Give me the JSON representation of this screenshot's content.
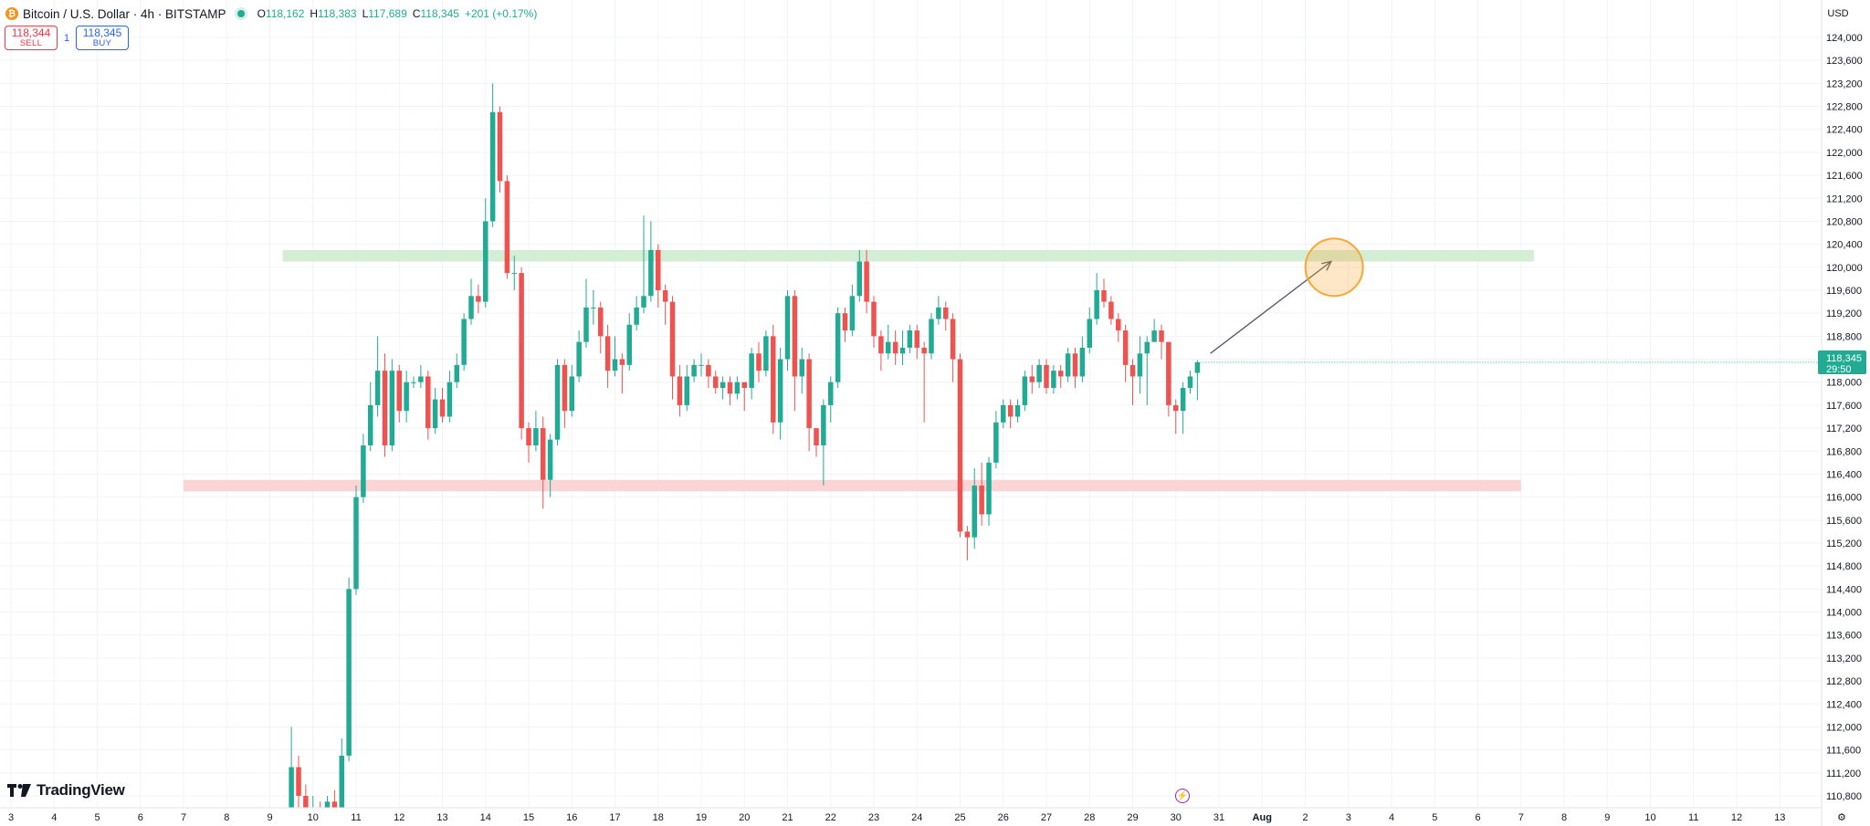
{
  "header": {
    "symbol_icon": "bitcoin-icon",
    "symbol_letter": "₿",
    "title": "Bitcoin / U.S. Dollar · 4h · BITSTAMP",
    "status_color": "#22ab94",
    "ohlc": {
      "open_label": "O",
      "open": "118,162",
      "high_label": "H",
      "high": "118,383",
      "low_label": "L",
      "low": "117,689",
      "close_label": "C",
      "close": "118,345",
      "change": "+201 (+0.17%)"
    }
  },
  "trade": {
    "sell_price": "118,344",
    "sell_label": "SELL",
    "quantity": "1",
    "buy_price": "118,345",
    "buy_label": "BUY"
  },
  "currency": "USD",
  "branding": {
    "logo_text": "TradingView"
  },
  "price_tag": {
    "price": "118,345",
    "countdown": "29:50"
  },
  "colors": {
    "up": "#22ab94",
    "down": "#ef5350",
    "resistance_zone": "#d4eed5",
    "support_zone": "#fbd4d6",
    "target_circle": "#f7a832",
    "arrow": "#50535e",
    "price_tag": "#22ab94"
  },
  "chart_data": {
    "type": "candlestick",
    "timeframe": "4h",
    "y_ticks": [
      "124,000",
      "123,600",
      "123,200",
      "122,800",
      "122,400",
      "122,000",
      "121,600",
      "121,200",
      "120,800",
      "120,400",
      "120,000",
      "119,600",
      "119,200",
      "118,800",
      "118,400",
      "118,000",
      "117,600",
      "117,200",
      "116,800",
      "116,400",
      "116,000",
      "115,600",
      "115,200",
      "114,800",
      "114,400",
      "114,000",
      "113,600",
      "113,200",
      "112,800",
      "112,400",
      "112,000",
      "111,600",
      "111,200",
      "110,800"
    ],
    "x_ticks": [
      "3",
      "4",
      "5",
      "6",
      "7",
      "8",
      "9",
      "10",
      "11",
      "12",
      "13",
      "14",
      "15",
      "16",
      "17",
      "18",
      "19",
      "20",
      "21",
      "22",
      "23",
      "24",
      "25",
      "26",
      "27",
      "28",
      "29",
      "30",
      "31",
      "Aug",
      "2",
      "3",
      "4",
      "5",
      "6",
      "7",
      "8",
      "9",
      "10",
      "11",
      "12",
      "13"
    ],
    "x_start_day": 3,
    "ylim": [
      110600,
      124300
    ],
    "grid": true,
    "candles": [
      [
        9.5,
        110500,
        111300,
        110000,
        112000
      ],
      [
        9.667,
        111300,
        110800,
        110600,
        111500
      ],
      [
        9.833,
        110800,
        110400,
        110200,
        111000
      ],
      [
        10,
        110400,
        110600,
        110300,
        110800
      ],
      [
        10.167,
        110600,
        110400,
        110200,
        110700
      ],
      [
        10.333,
        110400,
        110700,
        110300,
        110800
      ],
      [
        10.5,
        110700,
        110500,
        110300,
        110900
      ],
      [
        10.667,
        110500,
        111500,
        110400,
        111800
      ],
      [
        10.833,
        111500,
        114400,
        111400,
        114600
      ],
      [
        11,
        114400,
        116000,
        114300,
        116200
      ],
      [
        11.167,
        116000,
        116900,
        115900,
        117100
      ],
      [
        11.333,
        116900,
        117600,
        116800,
        118000
      ],
      [
        11.5,
        117600,
        118200,
        117400,
        118800
      ],
      [
        11.667,
        118200,
        116900,
        116700,
        118500
      ],
      [
        11.833,
        116900,
        118200,
        116800,
        118400
      ],
      [
        12,
        118200,
        117500,
        117300,
        118300
      ],
      [
        12.167,
        117500,
        118000,
        117300,
        118200
      ],
      [
        12.333,
        118000,
        118000,
        117900,
        118100
      ],
      [
        12.5,
        118000,
        118100,
        117900,
        118300
      ],
      [
        12.667,
        118100,
        117200,
        117000,
        118200
      ],
      [
        12.833,
        117200,
        117700,
        117100,
        117900
      ],
      [
        13,
        117700,
        117400,
        117300,
        117900
      ],
      [
        13.167,
        117400,
        118000,
        117300,
        118200
      ],
      [
        13.333,
        118000,
        118300,
        117900,
        118500
      ],
      [
        13.5,
        118300,
        119100,
        118200,
        119200
      ],
      [
        13.667,
        119100,
        119500,
        119000,
        119800
      ],
      [
        13.833,
        119500,
        119400,
        119200,
        119700
      ],
      [
        14,
        119400,
        120800,
        119300,
        121200
      ],
      [
        14.167,
        120800,
        122700,
        120700,
        123200
      ],
      [
        14.333,
        122700,
        121500,
        121300,
        122800
      ],
      [
        14.5,
        121500,
        119900,
        119800,
        121600
      ],
      [
        14.667,
        119900,
        119900,
        119600,
        120200
      ],
      [
        14.833,
        119900,
        117200,
        117000,
        120000
      ],
      [
        15,
        117200,
        116900,
        116600,
        117300
      ],
      [
        15.167,
        116900,
        117200,
        116800,
        117500
      ],
      [
        15.333,
        117200,
        116300,
        115800,
        117400
      ],
      [
        15.5,
        116300,
        117000,
        116000,
        117100
      ],
      [
        15.667,
        117000,
        118300,
        116900,
        118400
      ],
      [
        15.833,
        118300,
        117500,
        117200,
        118400
      ],
      [
        16,
        117500,
        118100,
        117400,
        118300
      ],
      [
        16.167,
        118100,
        118700,
        118000,
        118900
      ],
      [
        16.333,
        118700,
        119300,
        118600,
        119800
      ],
      [
        16.5,
        119300,
        119300,
        119000,
        119600
      ],
      [
        16.667,
        119300,
        118800,
        118500,
        119400
      ],
      [
        16.833,
        118800,
        118200,
        117900,
        119000
      ],
      [
        17,
        118200,
        118400,
        118100,
        118800
      ],
      [
        17.167,
        118400,
        118300,
        117800,
        118500
      ],
      [
        17.333,
        118300,
        119000,
        118200,
        119200
      ],
      [
        17.5,
        119000,
        119300,
        118900,
        119500
      ],
      [
        17.667,
        119300,
        119500,
        119200,
        120900
      ],
      [
        17.833,
        119500,
        120300,
        119400,
        120800
      ],
      [
        18,
        120300,
        119600,
        119300,
        120400
      ],
      [
        18.167,
        119600,
        119400,
        119000,
        119700
      ],
      [
        18.333,
        119400,
        118100,
        117700,
        119500
      ],
      [
        18.5,
        118100,
        117600,
        117400,
        118300
      ],
      [
        18.667,
        117600,
        118100,
        117500,
        118300
      ],
      [
        18.833,
        118100,
        118300,
        118000,
        118400
      ],
      [
        19,
        118300,
        118300,
        118100,
        118500
      ],
      [
        19.167,
        118300,
        118100,
        117900,
        118400
      ],
      [
        19.333,
        118100,
        117900,
        117800,
        118200
      ],
      [
        19.5,
        117900,
        118000,
        117700,
        118100
      ],
      [
        19.667,
        118000,
        117800,
        117600,
        118100
      ],
      [
        19.833,
        117800,
        118000,
        117700,
        118100
      ],
      [
        20,
        118000,
        117900,
        117500,
        118000
      ],
      [
        20.167,
        117900,
        118500,
        117700,
        118600
      ],
      [
        20.333,
        118500,
        118200,
        118000,
        118700
      ],
      [
        20.5,
        118200,
        118800,
        118100,
        118900
      ],
      [
        20.667,
        118800,
        117300,
        117100,
        119000
      ],
      [
        20.833,
        117300,
        118400,
        117000,
        118600
      ],
      [
        21,
        118400,
        119500,
        118200,
        119600
      ],
      [
        21.167,
        119500,
        118100,
        117500,
        119600
      ],
      [
        21.333,
        118100,
        118400,
        117800,
        118600
      ],
      [
        21.5,
        118400,
        117200,
        116800,
        118500
      ],
      [
        21.667,
        117200,
        116900,
        116700,
        117200
      ],
      [
        21.833,
        116900,
        117600,
        116200,
        117700
      ],
      [
        22,
        117600,
        118000,
        117300,
        118100
      ],
      [
        22.167,
        118000,
        119200,
        117900,
        119300
      ],
      [
        22.333,
        119200,
        118900,
        118700,
        119300
      ],
      [
        22.5,
        118900,
        119500,
        118800,
        119700
      ],
      [
        22.667,
        119500,
        120100,
        119400,
        120300
      ],
      [
        22.833,
        120100,
        119400,
        119200,
        120300
      ],
      [
        23,
        119400,
        118800,
        118600,
        119500
      ],
      [
        23.167,
        118800,
        118500,
        118200,
        118900
      ],
      [
        23.333,
        118500,
        118700,
        118400,
        119000
      ],
      [
        23.5,
        118700,
        118500,
        118300,
        118900
      ],
      [
        23.667,
        118500,
        118600,
        118300,
        118900
      ],
      [
        23.833,
        118600,
        118900,
        118500,
        119000
      ],
      [
        24,
        118900,
        118600,
        118400,
        119000
      ],
      [
        24.167,
        118600,
        118500,
        117300,
        118700
      ],
      [
        24.333,
        118500,
        119100,
        118400,
        119200
      ],
      [
        24.5,
        119100,
        119300,
        119000,
        119500
      ],
      [
        24.667,
        119300,
        119100,
        118900,
        119400
      ],
      [
        24.833,
        119100,
        118400,
        118000,
        119200
      ],
      [
        25,
        118400,
        115400,
        115300,
        118500
      ],
      [
        25.167,
        115400,
        115300,
        114900,
        115500
      ],
      [
        25.333,
        115300,
        116200,
        115100,
        116500
      ],
      [
        25.5,
        116200,
        115700,
        115500,
        116600
      ],
      [
        25.667,
        115700,
        116600,
        115500,
        116700
      ],
      [
        25.833,
        116600,
        117300,
        116500,
        117500
      ],
      [
        26,
        117300,
        117600,
        117200,
        117700
      ],
      [
        26.167,
        117600,
        117400,
        117200,
        117700
      ],
      [
        26.333,
        117400,
        117600,
        117300,
        117700
      ],
      [
        26.5,
        117600,
        118100,
        117500,
        118200
      ],
      [
        26.667,
        118100,
        118000,
        117800,
        118300
      ],
      [
        26.833,
        118000,
        118300,
        117900,
        118400
      ],
      [
        27,
        118300,
        117900,
        117800,
        118400
      ],
      [
        27.167,
        117900,
        118200,
        117800,
        118300
      ],
      [
        27.333,
        118200,
        118100,
        117900,
        118300
      ],
      [
        27.5,
        118100,
        118500,
        118000,
        118600
      ],
      [
        27.667,
        118500,
        118100,
        117900,
        118600
      ],
      [
        27.833,
        118100,
        118600,
        118000,
        118800
      ],
      [
        28,
        118600,
        119100,
        118500,
        119300
      ],
      [
        28.167,
        119100,
        119600,
        119000,
        119900
      ],
      [
        28.333,
        119600,
        119400,
        119300,
        119800
      ],
      [
        28.5,
        119400,
        119100,
        119000,
        119500
      ],
      [
        28.667,
        119100,
        118900,
        118700,
        119200
      ],
      [
        28.833,
        118900,
        118300,
        118000,
        119000
      ],
      [
        29,
        118300,
        118100,
        117600,
        118400
      ],
      [
        29.167,
        118100,
        118500,
        117800,
        118800
      ],
      [
        29.333,
        118500,
        118700,
        117600,
        118800
      ],
      [
        29.5,
        118700,
        118900,
        118700,
        119100
      ],
      [
        29.667,
        118900,
        118700,
        118400,
        119000
      ],
      [
        29.833,
        118700,
        117600,
        117400,
        118600
      ],
      [
        30,
        117600,
        117500,
        117100,
        117700
      ],
      [
        30.167,
        117500,
        117900,
        117100,
        118000
      ],
      [
        30.333,
        117900,
        118100,
        117800,
        118200
      ],
      [
        30.5,
        118162,
        118345,
        117689,
        118383
      ]
    ],
    "zones": [
      {
        "name": "resistance",
        "low": 120100,
        "high": 120300,
        "x_from": 9.3,
        "x_to": 38.3
      },
      {
        "name": "support",
        "low": 116100,
        "high": 116300,
        "x_from": 7.0,
        "x_to": 38.0
      }
    ],
    "projection": {
      "from": [
        30.8,
        118500
      ],
      "to": [
        33.6,
        120100
      ],
      "target": [
        33.67,
        120000
      ]
    },
    "last_price": 118345
  }
}
